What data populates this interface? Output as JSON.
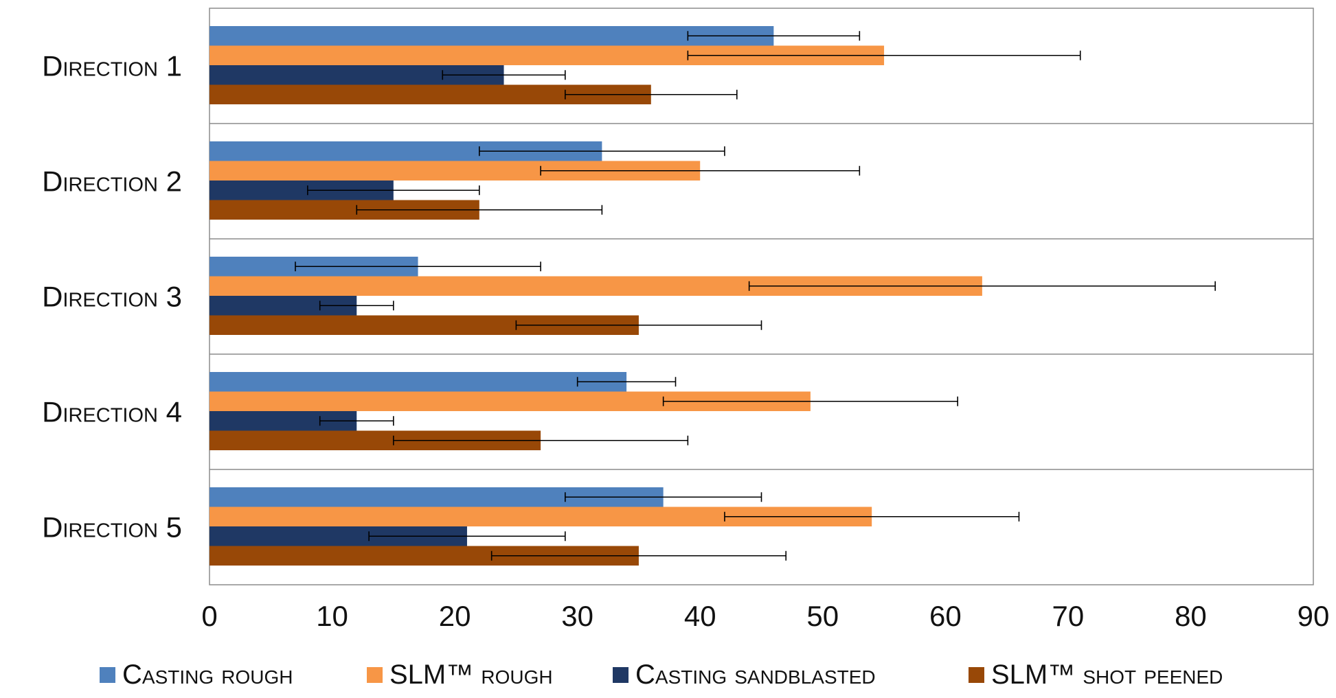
{
  "chart_data": {
    "type": "bar",
    "orientation": "horizontal",
    "categories": [
      "Direction 1",
      "Direction 2",
      "Direction 3",
      "Direction 4",
      "Direction 5"
    ],
    "series": [
      {
        "name": "Casting rough",
        "color": "#4F81BD",
        "values": [
          46,
          32,
          17,
          34,
          37
        ],
        "error_low": [
          39,
          22,
          7,
          30,
          29
        ],
        "error_high": [
          53,
          42,
          27,
          38,
          45
        ]
      },
      {
        "name": "SLM™ rough",
        "color": "#F79646",
        "values": [
          55,
          40,
          63,
          49,
          54
        ],
        "error_low": [
          39,
          27,
          44,
          37,
          42
        ],
        "error_high": [
          71,
          53,
          82,
          61,
          66
        ]
      },
      {
        "name": "Casting sandblasted",
        "color": "#1F3864",
        "values": [
          24,
          15,
          12,
          12,
          21
        ],
        "error_low": [
          19,
          8,
          9,
          9,
          13
        ],
        "error_high": [
          29,
          22,
          15,
          15,
          29
        ]
      },
      {
        "name": "SLM™ shot peened",
        "color": "#984807",
        "values": [
          36,
          22,
          35,
          27,
          35
        ],
        "error_low": [
          29,
          12,
          25,
          15,
          23
        ],
        "error_high": [
          43,
          32,
          45,
          39,
          47
        ]
      }
    ],
    "xlim": [
      0,
      90
    ],
    "xticks": [
      0,
      10,
      20,
      30,
      40,
      50,
      60,
      70,
      80,
      90
    ],
    "title": "",
    "xlabel": "",
    "ylabel": "",
    "legend_position": "bottom",
    "grid": "horizontal category separators"
  }
}
